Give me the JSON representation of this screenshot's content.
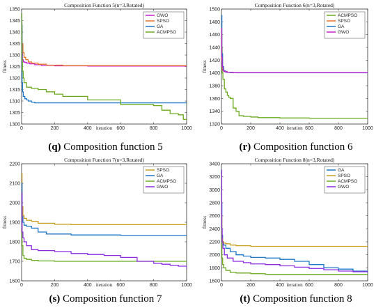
{
  "chart_data": [
    {
      "type": "line",
      "title": "Composition Function 5(n=3,Rotated)",
      "xlabel": "iteration",
      "ylabel": "fitness",
      "xlim": [
        0,
        1000
      ],
      "ylim": [
        1300,
        1350
      ],
      "xticks": [
        0,
        200,
        400,
        600,
        800,
        1000
      ],
      "yticks": [
        1300,
        1305,
        1310,
        1315,
        1320,
        1325,
        1330,
        1335,
        1340,
        1345,
        1350
      ],
      "legend_position": "top-right",
      "caption_letter": "(q)",
      "caption_text": " Composition function 5",
      "series": [
        {
          "name": "GWO",
          "color": "#c51fd1",
          "x": [
            0,
            2,
            5,
            10,
            20,
            30,
            50,
            80,
            120,
            200,
            400,
            1000
          ],
          "y": [
            1344,
            1334,
            1328,
            1327,
            1326.8,
            1326.5,
            1326.2,
            1325.8,
            1325.5,
            1325.3,
            1325.2,
            1325.2
          ]
        },
        {
          "name": "SPSO",
          "color": "#e8732a",
          "x": [
            0,
            3,
            8,
            15,
            25,
            40,
            60,
            100,
            150,
            250,
            1000
          ],
          "y": [
            1343,
            1335,
            1331,
            1329,
            1328,
            1327,
            1326.5,
            1326,
            1325.6,
            1325.4,
            1325.4
          ]
        },
        {
          "name": "GA",
          "color": "#1f77c7",
          "x": [
            0,
            3,
            6,
            10,
            20,
            30,
            40,
            60,
            80,
            120,
            1000
          ],
          "y": [
            1343,
            1318,
            1314,
            1312,
            1311,
            1310.5,
            1310,
            1309.5,
            1309.2,
            1309.2,
            1309.2
          ]
        },
        {
          "name": "ACMPSO",
          "color": "#6aaa1f",
          "x": [
            0,
            2,
            5,
            10,
            15,
            30,
            60,
            100,
            150,
            200,
            250,
            400,
            600,
            800,
            850,
            900,
            950,
            980,
            1000
          ],
          "y": [
            1348,
            1328,
            1323,
            1320,
            1318,
            1316,
            1315.5,
            1315,
            1314,
            1313,
            1312,
            1310.5,
            1308.5,
            1308,
            1306,
            1304.5,
            1304,
            1302,
            1301.5
          ]
        }
      ]
    },
    {
      "type": "line",
      "title": "Composition Function 6(n=3,Rotated)",
      "xlabel": "iteration",
      "ylabel": "fitness",
      "xlim": [
        0,
        1000
      ],
      "ylim": [
        1320,
        1500
      ],
      "xticks": [
        0,
        200,
        400,
        600,
        800,
        1000
      ],
      "yticks": [
        1320,
        1340,
        1360,
        1380,
        1400,
        1420,
        1440,
        1460,
        1480,
        1500
      ],
      "legend_position": "top-right",
      "caption_letter": "(r)",
      "caption_text": " Composition function 6",
      "series": [
        {
          "name": "ACMPSO",
          "color": "#6aaa1f",
          "x": [
            0,
            2,
            5,
            10,
            20,
            30,
            40,
            50,
            60,
            80,
            100,
            120,
            150,
            200,
            250,
            400,
            600,
            1000
          ],
          "y": [
            1480,
            1440,
            1400,
            1390,
            1375,
            1370,
            1365,
            1362,
            1360,
            1345,
            1340,
            1333,
            1332,
            1331,
            1330,
            1329.5,
            1329,
            1329
          ]
        },
        {
          "name": "SPSO",
          "color": "#e8732a",
          "x": [
            0,
            3,
            8,
            15,
            30,
            60,
            100,
            1000
          ],
          "y": [
            1460,
            1420,
            1405,
            1402,
            1401,
            1400.5,
            1400.3,
            1400.2
          ]
        },
        {
          "name": "GA",
          "color": "#1f77c7",
          "x": [
            0,
            3,
            8,
            15,
            30,
            60,
            100,
            1000
          ],
          "y": [
            1490,
            1430,
            1410,
            1403,
            1401,
            1400.5,
            1400.2,
            1400
          ]
        },
        {
          "name": "GWO",
          "color": "#c51fd1",
          "x": [
            0,
            2,
            5,
            10,
            20,
            40,
            80,
            1000
          ],
          "y": [
            1470,
            1425,
            1410,
            1404,
            1402,
            1401,
            1400.5,
            1400.3
          ]
        }
      ]
    },
    {
      "type": "line",
      "title": "Composition Function 7(n=3,Rotated)",
      "xlabel": "iteration",
      "ylabel": "fitness",
      "xlim": [
        0,
        1000
      ],
      "ylim": [
        1600,
        2200
      ],
      "xticks": [
        0,
        200,
        400,
        600,
        800,
        1000
      ],
      "yticks": [
        1600,
        1700,
        1800,
        1900,
        2000,
        2100,
        2200
      ],
      "legend_position": "top-right",
      "caption_letter": "(s)",
      "caption_text": " Composition function 7",
      "series": [
        {
          "name": "SPSO",
          "color": "#c8a020",
          "x": [
            0,
            3,
            8,
            15,
            30,
            60,
            100,
            200,
            300,
            1000
          ],
          "y": [
            2150,
            1980,
            1935,
            1920,
            1910,
            1905,
            1895,
            1890,
            1888,
            1888
          ]
        },
        {
          "name": "GA",
          "color": "#1f77c7",
          "x": [
            0,
            3,
            8,
            15,
            30,
            60,
            100,
            150,
            300,
            600,
            1000
          ],
          "y": [
            2100,
            1930,
            1900,
            1885,
            1880,
            1870,
            1850,
            1840,
            1835,
            1833,
            1832
          ]
        },
        {
          "name": "ACMPSO",
          "color": "#6aaa1f",
          "x": [
            0,
            3,
            8,
            15,
            30,
            60,
            100,
            200,
            400,
            1000
          ],
          "y": [
            2000,
            1780,
            1730,
            1715,
            1710,
            1705,
            1702,
            1700,
            1700,
            1700
          ]
        },
        {
          "name": "GWO",
          "color": "#8a2be2",
          "x": [
            0,
            3,
            8,
            15,
            30,
            60,
            100,
            200,
            300,
            400,
            500,
            600,
            700,
            800,
            850,
            900,
            950,
            1000
          ],
          "y": [
            2050,
            1850,
            1820,
            1800,
            1780,
            1760,
            1755,
            1750,
            1740,
            1735,
            1730,
            1720,
            1700,
            1690,
            1685,
            1680,
            1675,
            1660
          ]
        }
      ]
    },
    {
      "type": "line",
      "title": "Composition Function 8(n=3,Rotated)",
      "xlabel": "iteration",
      "ylabel": "fitness",
      "xlim": [
        0,
        1000
      ],
      "ylim": [
        1600,
        3400
      ],
      "xticks": [
        0,
        200,
        400,
        600,
        800,
        1000
      ],
      "yticks": [
        1600,
        1800,
        2000,
        2200,
        2400,
        2600,
        2800,
        3000,
        3200,
        3400
      ],
      "legend_position": "top-right",
      "caption_letter": "(t)",
      "caption_text": " Composition function 8",
      "series": [
        {
          "name": "GA",
          "color": "#1f77c7",
          "x": [
            0,
            3,
            8,
            15,
            30,
            60,
            100,
            150,
            200,
            300,
            400,
            500,
            600,
            700,
            800,
            900,
            1000
          ],
          "y": [
            2800,
            2300,
            2200,
            2150,
            2100,
            2050,
            2000,
            1980,
            1960,
            1950,
            1930,
            1900,
            1850,
            1800,
            1780,
            1750,
            1720
          ]
        },
        {
          "name": "SPSO",
          "color": "#c8a020",
          "x": [
            0,
            3,
            8,
            15,
            30,
            60,
            100,
            200,
            400,
            1000
          ],
          "y": [
            2600,
            2250,
            2200,
            2180,
            2170,
            2150,
            2140,
            2130,
            2130,
            2130
          ]
        },
        {
          "name": "ACMPSO",
          "color": "#6aaa1f",
          "x": [
            0,
            3,
            8,
            15,
            30,
            60,
            100,
            200,
            300,
            500,
            1000
          ],
          "y": [
            2400,
            1950,
            1850,
            1800,
            1760,
            1730,
            1720,
            1710,
            1700,
            1700,
            1700
          ]
        },
        {
          "name": "GWO",
          "color": "#8a2be2",
          "x": [
            0,
            2,
            5,
            10,
            20,
            40,
            80,
            150,
            200,
            300,
            400,
            500,
            600,
            700,
            800,
            900,
            1000
          ],
          "y": [
            3300,
            2400,
            2200,
            2100,
            2000,
            1950,
            1900,
            1880,
            1860,
            1850,
            1830,
            1810,
            1790,
            1770,
            1750,
            1740,
            1730
          ]
        }
      ]
    }
  ]
}
